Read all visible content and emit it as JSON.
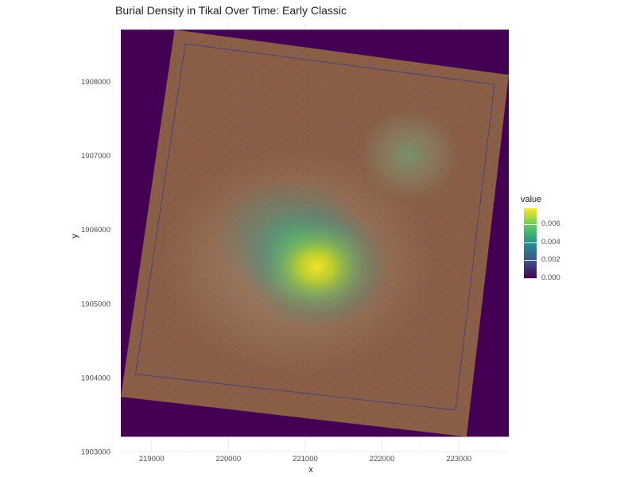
{
  "chart_data": {
    "type": "heatmap",
    "title": "Burial Density in Tikal Over Time: Early Classic",
    "xlabel": "x",
    "ylabel": "y",
    "xlim": [
      218600,
      223650
    ],
    "ylim": [
      1903000,
      1908800
    ],
    "x_ticks": [
      219000,
      220000,
      221000,
      222000,
      223000
    ],
    "y_ticks": [
      1903000,
      1904000,
      1905000,
      1906000,
      1907000,
      1908000
    ],
    "grid": true,
    "raster_extent": {
      "x": [
        218600,
        223650
      ],
      "y": [
        1903200,
        1908700
      ]
    },
    "map_corners": [
      [
        219300,
        1908700
      ],
      [
        223650,
        1908090
      ],
      [
        223100,
        1903200
      ],
      [
        218600,
        1903740
      ]
    ],
    "basemap_color": "#8a5f45",
    "density_peaks": [
      {
        "x": 221150,
        "y": 1905500,
        "value": 0.0075
      },
      {
        "x": 220800,
        "y": 1905900,
        "value": 0.0055
      },
      {
        "x": 222350,
        "y": 1907000,
        "value": 0.004
      }
    ],
    "legend": {
      "title": "value",
      "ticks": [
        "0.000",
        "0.002",
        "0.004",
        "0.006"
      ],
      "tick_values": [
        0,
        0.002,
        0.004,
        0.006
      ],
      "range": [
        0,
        0.0078
      ],
      "placement": "right"
    },
    "colors": {
      "low": "#440154",
      "mid1": "#3b528b",
      "mid2": "#21918c",
      "mid3": "#5ec962",
      "high": "#fde725"
    }
  }
}
